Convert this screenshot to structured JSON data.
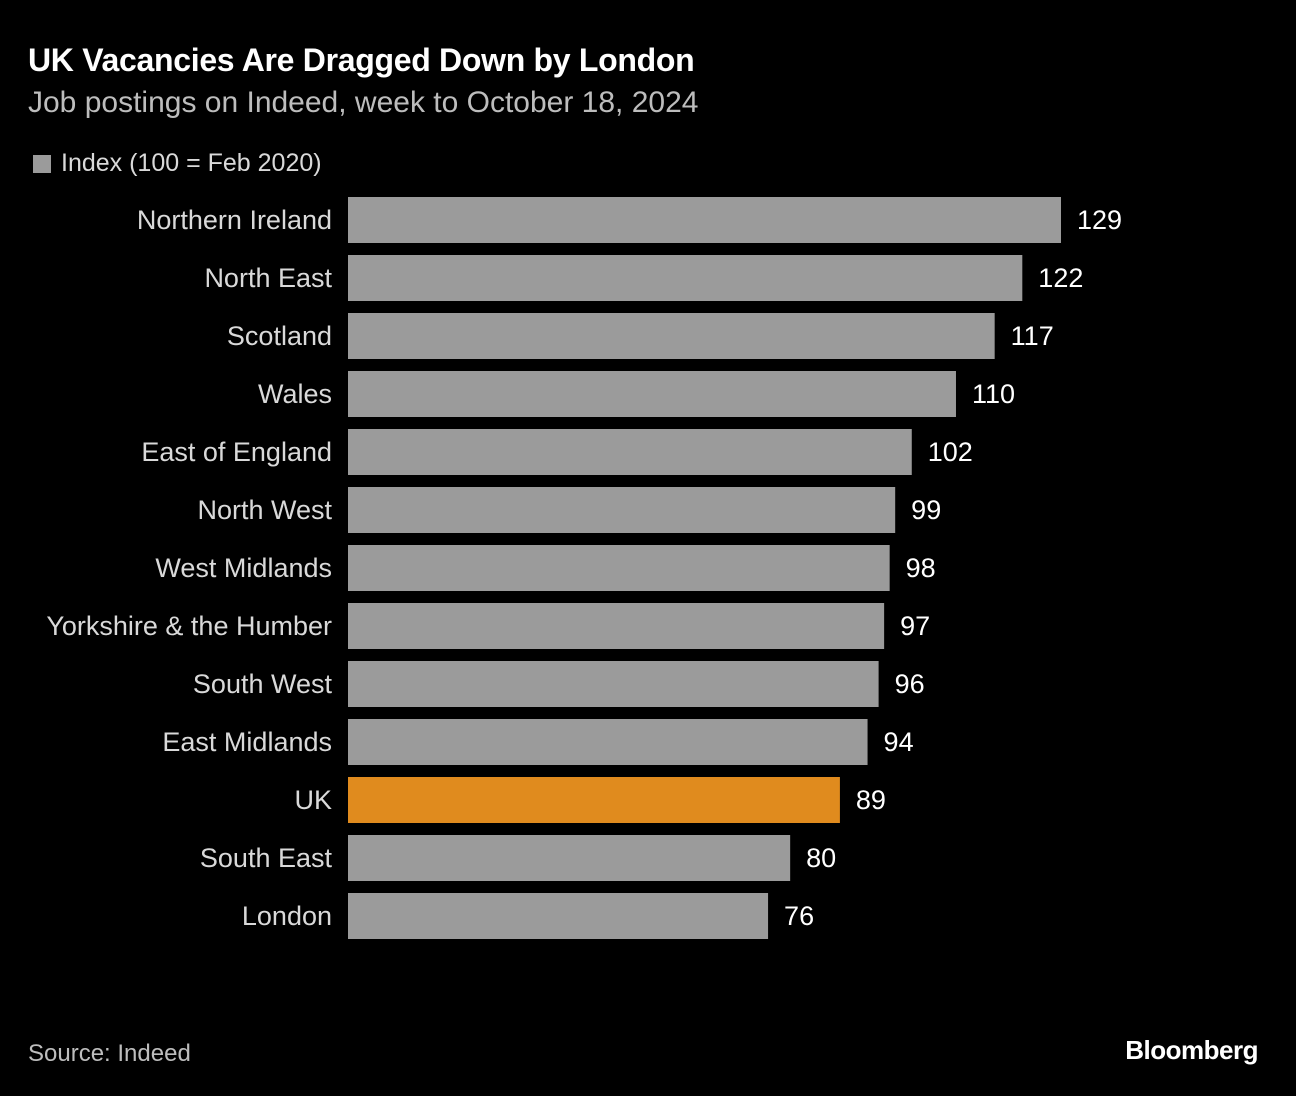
{
  "header": {
    "title": "UK Vacancies Are Dragged Down by London",
    "subtitle": "Job postings on Indeed, week to October 18, 2024"
  },
  "legend": {
    "label": "Index (100 = Feb 2020)",
    "color": "#9b9b9b"
  },
  "footer": {
    "source": "Source: Indeed",
    "brand": "Bloomberg"
  },
  "colors": {
    "bar": "#9b9b9b",
    "highlight": "#e08b1e",
    "background": "#000000"
  },
  "chart_data": {
    "type": "bar",
    "orientation": "horizontal",
    "title": "UK Vacancies Are Dragged Down by London",
    "subtitle": "Job postings on Indeed, week to October 18, 2024",
    "series_name": "Index (100 = Feb 2020)",
    "categories": [
      "Northern Ireland",
      "North East",
      "Scotland",
      "Wales",
      "East of England",
      "North West",
      "West Midlands",
      "Yorkshire & the Humber",
      "South West",
      "East Midlands",
      "UK",
      "South East",
      "London"
    ],
    "values": [
      129,
      122,
      117,
      110,
      102,
      99,
      98,
      97,
      96,
      94,
      89,
      80,
      76
    ],
    "highlight": "UK",
    "xlim": [
      0,
      129
    ],
    "xlabel": "",
    "ylabel": "",
    "grid": false,
    "source": "Source: Indeed"
  }
}
